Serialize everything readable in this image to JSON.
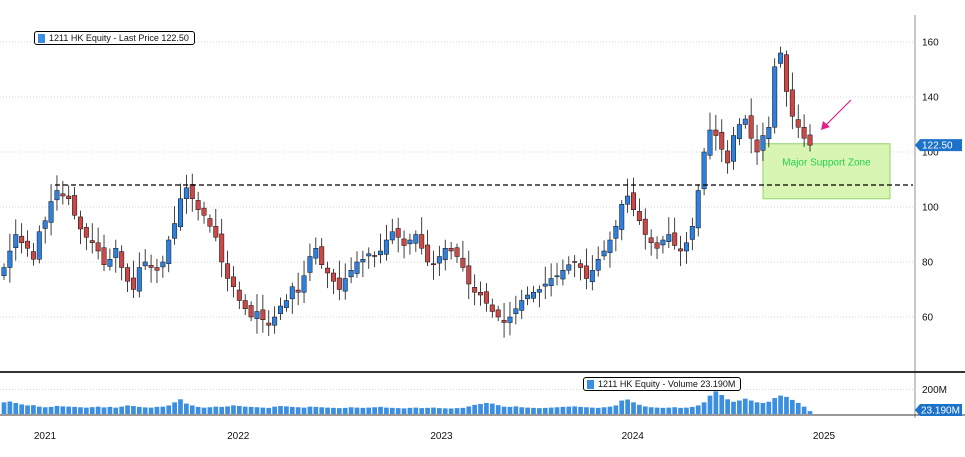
{
  "chart_data": {
    "type": "candlestick",
    "title": "",
    "price_legend": {
      "security": "1211 HK Equity",
      "field": "Last Price",
      "value": "122.50",
      "text": "1211 HK Equity - Last Price 122.50"
    },
    "volume_legend": {
      "security": "1211 HK Equity",
      "field": "Volume",
      "value": "23.190M",
      "text": "1211 HK Equity - Volume 23.190M"
    },
    "x_axis": {
      "tick_labels": [
        "2021",
        "2022",
        "2023",
        "2024",
        "2025"
      ],
      "range": [
        "2020-09",
        "2025-06"
      ]
    },
    "y_axis_price": {
      "tick_labels": [
        "60",
        "80",
        "100",
        "120",
        "140",
        "160"
      ],
      "ticks": [
        60,
        80,
        100,
        120,
        140,
        160
      ],
      "range": [
        40,
        168
      ],
      "last_price_badge": "122.50",
      "last_price": 122.5
    },
    "y_axis_volume": {
      "tick_labels": [
        "200M"
      ],
      "ticks": [
        200
      ],
      "range": [
        0,
        310
      ],
      "last_volume_badge": "23.190M",
      "last_volume": 23.19
    },
    "grid": "horizontal dotted",
    "annotations": {
      "support_line": {
        "value": 108,
        "style": "dashed"
      },
      "support_zone": {
        "label": "Major Support Zone",
        "top": 123,
        "bottom": 103,
        "from": "2024-11",
        "to": "2025-04"
      },
      "arrow": {
        "color": "#e0208a",
        "points_to": "2025-01"
      }
    },
    "colors": {
      "up": "#2f7fdc",
      "down": "#c94848",
      "volume": "#3c8fe0",
      "zone_fill": "#d9f5b3",
      "zone_border": "#8fd46a",
      "zone_text": "#22d14a",
      "badge": "#1c72c9",
      "arrow": "#e0208a"
    },
    "weekly_close": [
      78,
      84,
      90,
      87,
      85,
      81,
      91,
      95,
      102,
      106,
      104,
      103,
      97,
      92,
      89,
      87,
      84,
      79,
      81,
      85,
      78,
      73,
      70,
      78,
      80,
      78,
      77,
      80,
      88,
      94,
      103,
      107,
      103,
      99,
      97,
      93,
      89,
      80,
      74,
      71,
      66,
      63,
      60,
      62,
      59,
      57,
      60,
      64,
      66,
      71,
      69,
      75,
      82,
      85,
      79,
      76,
      73,
      70,
      74,
      77,
      80,
      81,
      83,
      82,
      84,
      88,
      91,
      89,
      86,
      88,
      90,
      85,
      80,
      79,
      82,
      85,
      84,
      82,
      78,
      72,
      69,
      68,
      65,
      62,
      60,
      58,
      60,
      63,
      66,
      68,
      69,
      70,
      72,
      74,
      75,
      77,
      79,
      80,
      78,
      74,
      77,
      81,
      84,
      88,
      93,
      101,
      104,
      99,
      95,
      90,
      87,
      85,
      88,
      90,
      86,
      84,
      87,
      93,
      106,
      120,
      128,
      126,
      121,
      116,
      126,
      130,
      132,
      125,
      120,
      126,
      129,
      151,
      156,
      142,
      133,
      129,
      125,
      122.5
    ],
    "weekly_volume": [
      95,
      102,
      90,
      78,
      70,
      72,
      60,
      55,
      58,
      66,
      62,
      60,
      58,
      55,
      52,
      56,
      60,
      54,
      58,
      52,
      60,
      70,
      65,
      58,
      54,
      52,
      58,
      60,
      70,
      95,
      120,
      85,
      70,
      58,
      52,
      55,
      60,
      58,
      62,
      70,
      65,
      60,
      58,
      55,
      52,
      50,
      60,
      65,
      62,
      58,
      55,
      52,
      60,
      58,
      55,
      52,
      50,
      48,
      50,
      55,
      52,
      50,
      52,
      55,
      58,
      52,
      50,
      48,
      46,
      50,
      52,
      48,
      50,
      52,
      48,
      46,
      45,
      48,
      50,
      62,
      75,
      82,
      90,
      85,
      72,
      60,
      58,
      62,
      55,
      52,
      50,
      48,
      50,
      52,
      55,
      58,
      60,
      62,
      58,
      55,
      52,
      50,
      55,
      60,
      70,
      110,
      118,
      95,
      75,
      62,
      55,
      52,
      50,
      52,
      55,
      50,
      52,
      58,
      70,
      95,
      150,
      185,
      155,
      120,
      100,
      110,
      125,
      110,
      95,
      90,
      100,
      130,
      150,
      140,
      115,
      90,
      60,
      23.19
    ]
  }
}
